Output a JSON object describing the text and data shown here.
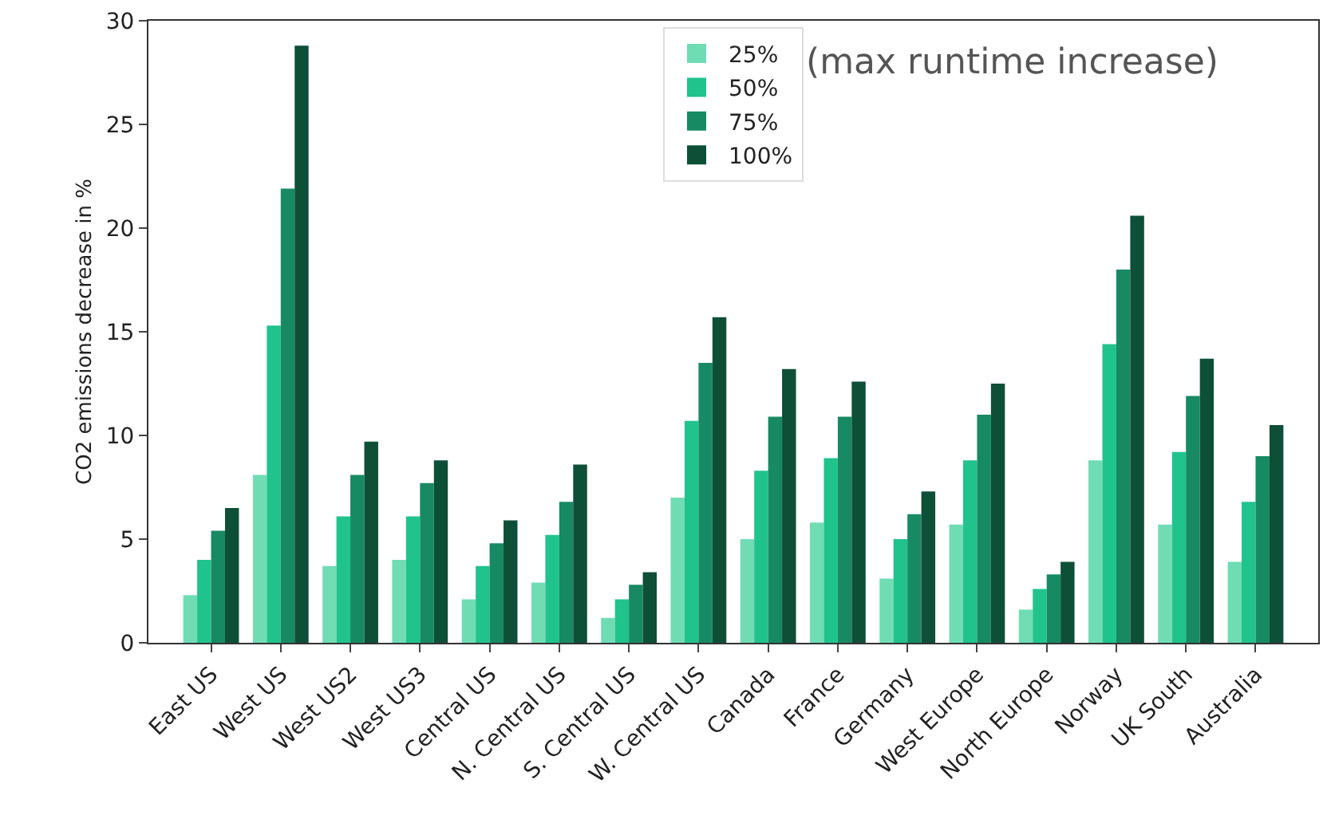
{
  "chart_data": {
    "type": "bar",
    "ylabel": "CO2 emissions decrease in %",
    "categories": [
      "East US",
      "West US",
      "West US2",
      "West US3",
      "Central US",
      "N. Central US",
      "S. Central US",
      "W. Central US",
      "Canada",
      "France",
      "Germany",
      "West Europe",
      "North Europe",
      "Norway",
      "UK South",
      "Australia"
    ],
    "series": [
      {
        "name": "25%",
        "color": "#6fdcb4",
        "values": [
          2.3,
          8.1,
          3.7,
          4.0,
          2.1,
          2.9,
          1.2,
          7.0,
          5.0,
          5.8,
          3.1,
          5.7,
          1.6,
          8.8,
          5.7,
          3.9
        ]
      },
      {
        "name": "50%",
        "color": "#20c38c",
        "values": [
          4.0,
          15.3,
          6.1,
          6.1,
          3.7,
          5.2,
          2.1,
          10.7,
          8.3,
          8.9,
          5.0,
          8.8,
          2.6,
          14.4,
          9.2,
          6.8
        ]
      },
      {
        "name": "75%",
        "color": "#178a64",
        "values": [
          5.4,
          21.9,
          8.1,
          7.7,
          4.8,
          6.8,
          2.8,
          13.5,
          10.9,
          10.9,
          6.2,
          11.0,
          3.3,
          18.0,
          11.9,
          9.0
        ]
      },
      {
        "name": "100%",
        "color": "#0e4f38",
        "values": [
          6.5,
          28.8,
          9.7,
          8.8,
          5.9,
          8.6,
          3.4,
          15.7,
          13.2,
          12.6,
          7.3,
          12.5,
          3.9,
          20.6,
          13.7,
          10.5
        ]
      }
    ],
    "ylim": [
      0,
      30
    ],
    "yticks": [
      0,
      5,
      10,
      15,
      20,
      25,
      30
    ],
    "grid": false,
    "legend": "top",
    "annotations": [
      "(max runtime increase)"
    ]
  }
}
